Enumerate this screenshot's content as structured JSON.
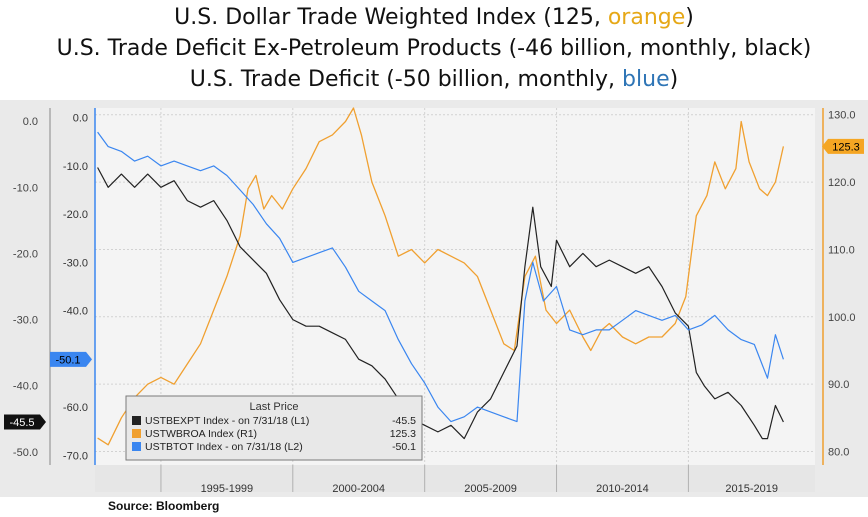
{
  "titles": {
    "line1_prefix": "U.S. Dollar Trade Weighted Index (125, ",
    "line1_color_word": "orange",
    "line1_suffix": ")",
    "line2": "U.S. Trade Deficit Ex-Petroleum Products (-46 billion, monthly, black)",
    "line3_prefix": "U.S. Trade Deficit (-50 billion, monthly, ",
    "line3_color_word": "blue",
    "line3_suffix": ")"
  },
  "colors": {
    "orange": "#f0a030",
    "blue": "#3a86f0",
    "black": "#222222",
    "title_orange": "#e6a817",
    "title_blue": "#2e75b6",
    "plot_bg": "#f4f4f4"
  },
  "source": "Source: Bloomberg",
  "chart_data": {
    "type": "line",
    "x_range": [
      1992.5,
      2019.8
    ],
    "x_ticks": [
      {
        "label": "1995-1999",
        "from": 1995,
        "to": 2000
      },
      {
        "label": "2000-2004",
        "from": 2000,
        "to": 2005
      },
      {
        "label": "2005-2009",
        "from": 2005,
        "to": 2010
      },
      {
        "label": "2010-2014",
        "from": 2010,
        "to": 2015
      },
      {
        "label": "2015-2019",
        "from": 2015,
        "to": 2020
      }
    ],
    "axes": {
      "L1": {
        "range": [
          -52,
          2
        ],
        "ticks": [
          "0.0",
          "-10.0",
          "-20.0",
          "-30.0",
          "-40.0",
          "-50.0"
        ],
        "tick_values": [
          0,
          -10,
          -20,
          -30,
          -40,
          -50
        ]
      },
      "L2": {
        "range": [
          -72,
          2
        ],
        "ticks": [
          "0.0",
          "-10.0",
          "-20.0",
          "-30.0",
          "-40.0",
          "-50.0",
          "-60.0",
          "-70.0"
        ],
        "tick_values": [
          0,
          -10,
          -20,
          -30,
          -40,
          -50,
          -60,
          -70
        ]
      },
      "R1": {
        "range": [
          78,
          131
        ],
        "ticks": [
          "130.0",
          "120.0",
          "110.0",
          "100.0",
          "90.0",
          "80.0"
        ],
        "tick_values": [
          130,
          120,
          110,
          100,
          90,
          80
        ]
      }
    },
    "last_price_tags": {
      "L1": "-45.5",
      "L2": "-50.1",
      "R1": "125.3"
    },
    "legend": {
      "title": "Last Price",
      "items": [
        {
          "series": "black",
          "label": "USTBEXPT Index -  on 7/31/18  (L1)",
          "value": "-45.5"
        },
        {
          "series": "orange",
          "label": "USTWBROA Index  (R1)",
          "value": "125.3"
        },
        {
          "series": "blue",
          "label": "USTBTOT Index -  on 7/31/18  (L2)",
          "value": "-50.1"
        }
      ]
    },
    "series": [
      {
        "key": "orange",
        "name": "USTWBROA Index",
        "axis": "R1",
        "points": [
          [
            1992.6,
            82
          ],
          [
            1993.0,
            81
          ],
          [
            1993.5,
            85
          ],
          [
            1994.0,
            88
          ],
          [
            1994.5,
            90
          ],
          [
            1995.0,
            91
          ],
          [
            1995.5,
            90
          ],
          [
            1996.0,
            93
          ],
          [
            1996.5,
            96
          ],
          [
            1997.0,
            101
          ],
          [
            1997.5,
            106
          ],
          [
            1998.0,
            112
          ],
          [
            1998.3,
            119
          ],
          [
            1998.6,
            121
          ],
          [
            1998.9,
            116
          ],
          [
            1999.2,
            118
          ],
          [
            1999.6,
            116
          ],
          [
            2000.0,
            119
          ],
          [
            2000.5,
            122
          ],
          [
            2001.0,
            126
          ],
          [
            2001.5,
            127
          ],
          [
            2002.0,
            129
          ],
          [
            2002.3,
            131
          ],
          [
            2002.6,
            127
          ],
          [
            2003.0,
            120
          ],
          [
            2003.5,
            115
          ],
          [
            2004.0,
            109
          ],
          [
            2004.5,
            110
          ],
          [
            2005.0,
            108
          ],
          [
            2005.5,
            110
          ],
          [
            2006.0,
            109
          ],
          [
            2006.5,
            108
          ],
          [
            2007.0,
            106
          ],
          [
            2007.5,
            101
          ],
          [
            2008.0,
            96
          ],
          [
            2008.4,
            95
          ],
          [
            2008.8,
            106
          ],
          [
            2009.2,
            109
          ],
          [
            2009.6,
            101
          ],
          [
            2010.0,
            99
          ],
          [
            2010.5,
            101
          ],
          [
            2011.0,
            97
          ],
          [
            2011.3,
            95
          ],
          [
            2011.7,
            98
          ],
          [
            2012.0,
            99
          ],
          [
            2012.5,
            97
          ],
          [
            2013.0,
            96
          ],
          [
            2013.5,
            97
          ],
          [
            2014.0,
            97
          ],
          [
            2014.5,
            99
          ],
          [
            2014.9,
            103
          ],
          [
            2015.3,
            115
          ],
          [
            2015.7,
            118
          ],
          [
            2016.0,
            123
          ],
          [
            2016.4,
            119
          ],
          [
            2016.8,
            122
          ],
          [
            2017.0,
            129
          ],
          [
            2017.3,
            123
          ],
          [
            2017.7,
            119
          ],
          [
            2018.0,
            118
          ],
          [
            2018.3,
            120
          ],
          [
            2018.6,
            125.3
          ]
        ]
      },
      {
        "key": "black",
        "name": "USTBEXPT Index",
        "axis": "L1",
        "points": [
          [
            1992.6,
            -7
          ],
          [
            1993.0,
            -10
          ],
          [
            1993.5,
            -8
          ],
          [
            1994.0,
            -10
          ],
          [
            1994.5,
            -8
          ],
          [
            1995.0,
            -10
          ],
          [
            1995.5,
            -9
          ],
          [
            1996.0,
            -12
          ],
          [
            1996.5,
            -13
          ],
          [
            1997.0,
            -12
          ],
          [
            1997.5,
            -15
          ],
          [
            1998.0,
            -19
          ],
          [
            1998.5,
            -21
          ],
          [
            1999.0,
            -23
          ],
          [
            1999.5,
            -27
          ],
          [
            2000.0,
            -30
          ],
          [
            2000.5,
            -31
          ],
          [
            2001.0,
            -31
          ],
          [
            2001.5,
            -32
          ],
          [
            2002.0,
            -33
          ],
          [
            2002.5,
            -36
          ],
          [
            2003.0,
            -37
          ],
          [
            2003.5,
            -39
          ],
          [
            2004.0,
            -42
          ],
          [
            2004.5,
            -45
          ],
          [
            2005.0,
            -46
          ],
          [
            2005.5,
            -47
          ],
          [
            2006.0,
            -46
          ],
          [
            2006.5,
            -48
          ],
          [
            2007.0,
            -44
          ],
          [
            2007.5,
            -42
          ],
          [
            2008.0,
            -38
          ],
          [
            2008.5,
            -34
          ],
          [
            2008.8,
            -22
          ],
          [
            2009.1,
            -13
          ],
          [
            2009.4,
            -22
          ],
          [
            2009.8,
            -25
          ],
          [
            2010.0,
            -18
          ],
          [
            2010.5,
            -22
          ],
          [
            2011.0,
            -20
          ],
          [
            2011.5,
            -22
          ],
          [
            2012.0,
            -21
          ],
          [
            2012.5,
            -22
          ],
          [
            2013.0,
            -23
          ],
          [
            2013.5,
            -22
          ],
          [
            2014.0,
            -25
          ],
          [
            2014.5,
            -29
          ],
          [
            2015.0,
            -31
          ],
          [
            2015.3,
            -38
          ],
          [
            2015.6,
            -40
          ],
          [
            2016.0,
            -42
          ],
          [
            2016.5,
            -41
          ],
          [
            2017.0,
            -43
          ],
          [
            2017.5,
            -46
          ],
          [
            2017.8,
            -48
          ],
          [
            2018.0,
            -48
          ],
          [
            2018.3,
            -43
          ],
          [
            2018.6,
            -45.5
          ]
        ]
      },
      {
        "key": "blue",
        "name": "USTBTOT Index",
        "axis": "L2",
        "points": [
          [
            1992.6,
            -3
          ],
          [
            1993.0,
            -6
          ],
          [
            1993.5,
            -7
          ],
          [
            1994.0,
            -9
          ],
          [
            1994.5,
            -8
          ],
          [
            1995.0,
            -10
          ],
          [
            1995.5,
            -9
          ],
          [
            1996.0,
            -10
          ],
          [
            1996.5,
            -11
          ],
          [
            1997.0,
            -10
          ],
          [
            1997.5,
            -12
          ],
          [
            1998.0,
            -15
          ],
          [
            1998.5,
            -18
          ],
          [
            1999.0,
            -22
          ],
          [
            1999.5,
            -25
          ],
          [
            2000.0,
            -30
          ],
          [
            2000.5,
            -29
          ],
          [
            2001.0,
            -28
          ],
          [
            2001.5,
            -27
          ],
          [
            2002.0,
            -31
          ],
          [
            2002.5,
            -36
          ],
          [
            2003.0,
            -38
          ],
          [
            2003.5,
            -40
          ],
          [
            2004.0,
            -46
          ],
          [
            2004.5,
            -51
          ],
          [
            2005.0,
            -55
          ],
          [
            2005.5,
            -60
          ],
          [
            2006.0,
            -63
          ],
          [
            2006.5,
            -62
          ],
          [
            2007.0,
            -60
          ],
          [
            2007.5,
            -61
          ],
          [
            2008.0,
            -62
          ],
          [
            2008.5,
            -63
          ],
          [
            2008.8,
            -38
          ],
          [
            2009.1,
            -30
          ],
          [
            2009.5,
            -38
          ],
          [
            2010.0,
            -35
          ],
          [
            2010.5,
            -44
          ],
          [
            2011.0,
            -45
          ],
          [
            2011.5,
            -44
          ],
          [
            2012.0,
            -44
          ],
          [
            2012.5,
            -42
          ],
          [
            2013.0,
            -40
          ],
          [
            2013.5,
            -41
          ],
          [
            2014.0,
            -42
          ],
          [
            2014.5,
            -41
          ],
          [
            2015.0,
            -44
          ],
          [
            2015.5,
            -43
          ],
          [
            2016.0,
            -41
          ],
          [
            2016.5,
            -44
          ],
          [
            2017.0,
            -46
          ],
          [
            2017.5,
            -47
          ],
          [
            2018.0,
            -54
          ],
          [
            2018.3,
            -45
          ],
          [
            2018.6,
            -50.1
          ]
        ]
      }
    ]
  }
}
